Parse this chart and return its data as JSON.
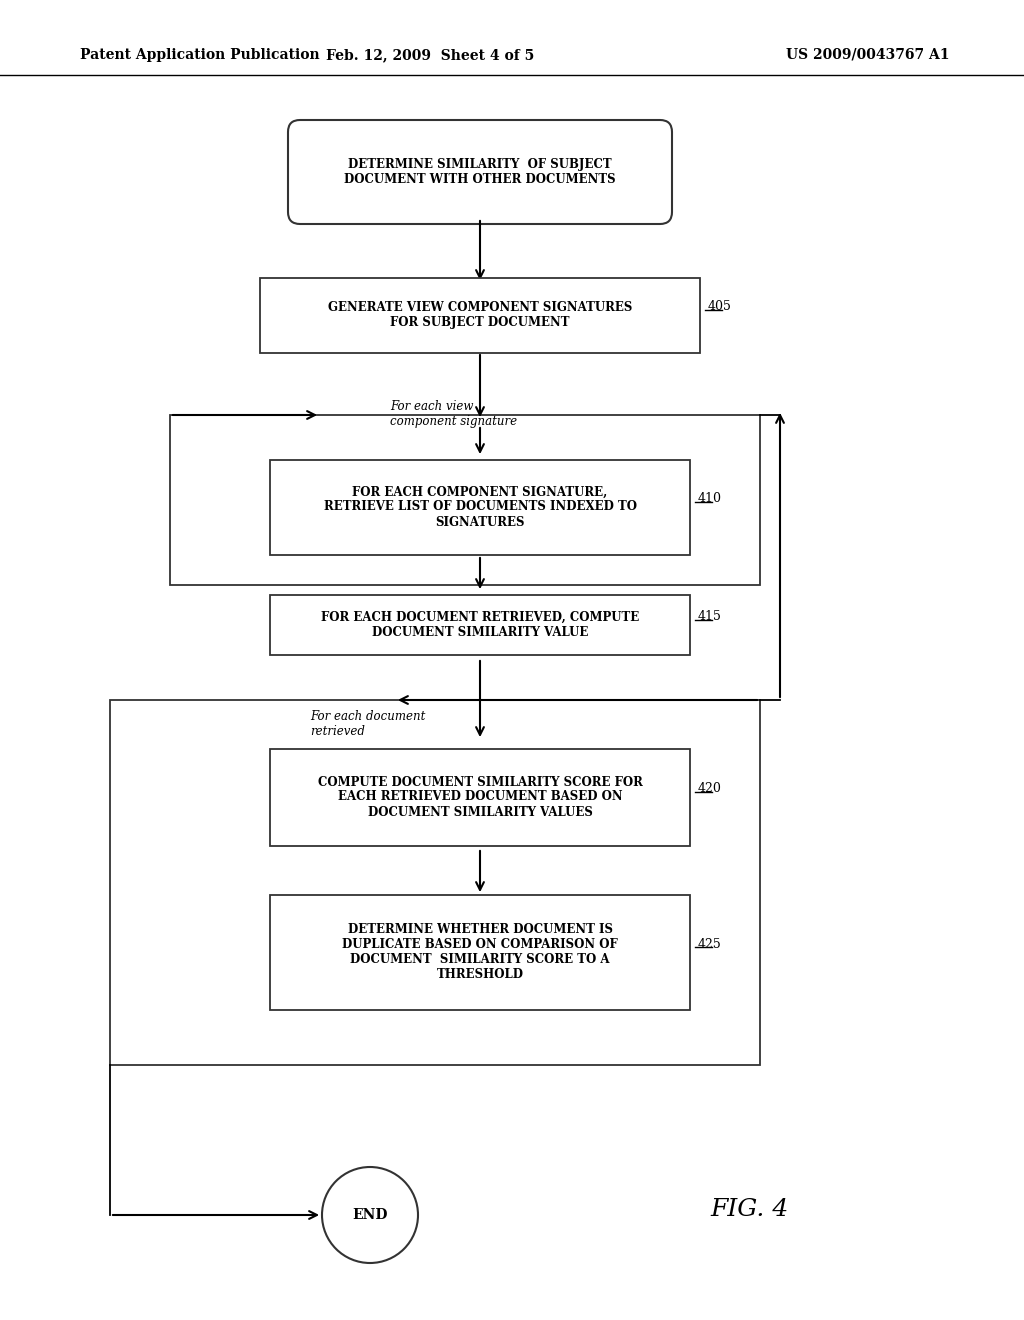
{
  "bg_color": "#ffffff",
  "header_left": "Patent Application Publication",
  "header_center": "Feb. 12, 2009  Sheet 4 of 5",
  "header_right": "US 2009/0043767 A1",
  "fig_label": "FIG. 4",
  "start_text": "DETERMINE SIMILARITY  OF SUBJECT\nDOCUMENT WITH OTHER DOCUMENTS",
  "box405_text": "GENERATE VIEW COMPONENT SIGNATURES\nFOR SUBJECT DOCUMENT",
  "box410_text": "FOR EACH COMPONENT SIGNATURE,\nRETRIEVE LIST OF DOCUMENTS INDEXED TO\nSIGNATURES",
  "box415_text": "FOR EACH DOCUMENT RETRIEVED, COMPUTE\nDOCUMENT SIMILARITY VALUE",
  "box420_text": "COMPUTE DOCUMENT SIMILARITY SCORE FOR\nEACH RETRIEVED DOCUMENT BASED ON\nDOCUMENT SIMILARITY VALUES",
  "box425_text": "DETERMINE WHETHER DOCUMENT IS\nDUPLICATE BASED ON COMPARISON OF\nDOCUMENT  SIMILARITY SCORE TO A\nTHRESHOLD",
  "end_text": "END",
  "loop1_label": "For each view\ncomponent signature",
  "loop2_label": "For each document\nretrieved",
  "label405": "405",
  "label410": "410",
  "label415": "415",
  "label420": "420",
  "label425": "425"
}
